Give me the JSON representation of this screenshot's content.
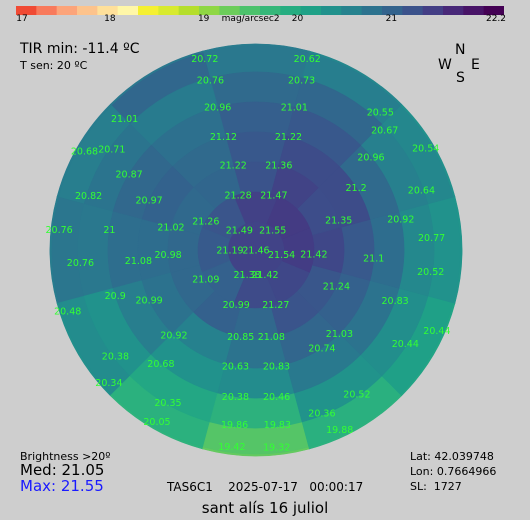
{
  "colorbar": {
    "stops": [
      "#f04a34",
      "#f87a5c",
      "#fca47a",
      "#fdc38c",
      "#ffe09a",
      "#fff7a8",
      "#f5f032",
      "#d8ea2e",
      "#b5de2b",
      "#8fd744",
      "#6ccd5a",
      "#4cc26c",
      "#35b779",
      "#26ad81",
      "#1fa187",
      "#21918c",
      "#26828e",
      "#2c728e",
      "#33638d",
      "#3b528b",
      "#433e85",
      "#482878",
      "#481467",
      "#440154"
    ],
    "tick_labels": [
      "17",
      "18",
      "19",
      "20",
      "21",
      "22.2"
    ],
    "tick_values": [
      17,
      18,
      19,
      20,
      21,
      22.2
    ],
    "unit": "mag/arcsec2",
    "min": 17,
    "max": 22.2
  },
  "header": {
    "tir": "TIR min: -11.4 ºC",
    "tsen": "T sen: 20 ºC"
  },
  "compass": {
    "n": "N",
    "s": "S",
    "e": "E",
    "w": "W"
  },
  "stats": {
    "brightness": "Brightness >20º",
    "med": "Med: 21.05",
    "max": "Max: 21.55"
  },
  "instrument": "TAS6C1    2025-07-17   00:00:17",
  "location": {
    "lat": "Lat: 42.039748",
    "lon": "Lon: 0.7664966",
    "sl": "SL:  1727"
  },
  "caption": "sant alís 16 juliol",
  "label_color": "#33ff33",
  "chart_data": {
    "type": "polar-heatmap",
    "unit": "mag/arcsec2",
    "altitude_rings": [
      {
        "alt": 90,
        "mode": "center",
        "values": [
          21.46
        ]
      },
      {
        "alt": 80,
        "mode": "n",
        "azimuths": [
          0,
          45,
          90,
          135,
          180,
          225,
          270,
          315
        ],
        "values": [
          21.49,
          21.26,
          21.19,
          21.09,
          21.38,
          21.42,
          21.54,
          21.55
        ]
      },
      {
        "alt": 70,
        "mode": "n",
        "azimuths": [
          0,
          30,
          60,
          90,
          120,
          150,
          180,
          210,
          240,
          270,
          300,
          330
        ],
        "values": [
          21.28,
          21.02,
          20.98,
          20.99,
          20.99,
          21.09,
          20.99,
          21.27,
          21.24,
          21.42,
          21.35,
          21.47
        ]
      },
      {
        "alt": 60,
        "mode": "n",
        "azimuths": [
          0,
          30,
          60,
          90,
          120,
          150,
          180,
          210,
          240,
          270,
          300,
          330
        ],
        "values": [
          21.22,
          20.97,
          21.08,
          20.92,
          20.85,
          20.63,
          20.83,
          21.03,
          21.1,
          21.2,
          21.36,
          21.36
        ]
      },
      {
        "alt": 50,
        "mode": "n",
        "azimuths": [
          0,
          30,
          60,
          90,
          120,
          150,
          180,
          210,
          240,
          270,
          300,
          330
        ],
        "values": [
          21.12,
          20.87,
          21,
          20.9,
          20.68,
          20.38,
          20.46,
          20.74,
          20.83,
          20.92,
          20.96,
          21.22
        ]
      },
      {
        "alt": 40,
        "mode": "n",
        "azimuths": [
          0,
          30,
          60,
          90,
          120,
          150,
          180,
          210,
          240,
          270,
          300,
          330
        ],
        "values": [
          20.96,
          20.71,
          20.82,
          20.76,
          20.38,
          20.05,
          19.84,
          20.36,
          20.44,
          20.52,
          20.64,
          21.01
        ]
      },
      {
        "alt": 30,
        "mode": "n",
        "azimuths": [
          0,
          30,
          60,
          90,
          120,
          150,
          180,
          210,
          240,
          270,
          300,
          330
        ],
        "values": [
          20.76,
          21.01,
          20.68,
          20.79,
          20.46,
          19.86,
          19.42,
          19.88,
          20.18,
          20.38,
          20.54,
          20.67
        ]
      },
      {
        "alt": 20,
        "mode": "n",
        "azimuths": [
          0,
          30,
          60,
          90,
          120,
          150,
          180,
          210,
          240,
          270,
          300,
          330
        ],
        "values": [
          20.72,
          20.76,
          20.7,
          20.7,
          20.42,
          19.8,
          19.32,
          19.85,
          20.1,
          20.34,
          20.4,
          20.55
        ]
      }
    ],
    "labels": [
      {
        "text": "20.62",
        "alt": 20,
        "az": 345
      },
      {
        "text": "20.72",
        "alt": 20,
        "az": 15
      },
      {
        "text": "21.01",
        "alt": 25,
        "az": 45
      },
      {
        "text": "20.55",
        "alt": 25,
        "az": 318
      },
      {
        "text": "20.73",
        "alt": 30,
        "az": 345
      },
      {
        "text": "20.76",
        "alt": 30,
        "az": 15
      },
      {
        "text": "20.71",
        "alt": 30,
        "az": 55
      },
      {
        "text": "20.68",
        "alt": 20,
        "az": 60
      },
      {
        "text": "20.67",
        "alt": 30,
        "az": 313
      },
      {
        "text": "20.54",
        "alt": 20,
        "az": 301
      },
      {
        "text": "21.01",
        "alt": 40,
        "az": 345
      },
      {
        "text": "20.96",
        "alt": 40,
        "az": 15
      },
      {
        "text": "20.87",
        "alt": 40,
        "az": 59
      },
      {
        "text": "20.82",
        "alt": 30,
        "az": 72
      },
      {
        "text": "20.96",
        "alt": 40,
        "az": 309
      },
      {
        "text": "20.64",
        "alt": 30,
        "az": 290
      },
      {
        "text": "21.22",
        "alt": 50,
        "az": 344
      },
      {
        "text": "21.12",
        "alt": 50,
        "az": 16
      },
      {
        "text": "21.36",
        "alt": 60,
        "az": 345
      },
      {
        "text": "21.22",
        "alt": 60,
        "az": 15
      },
      {
        "text": "20.97",
        "alt": 50,
        "az": 65
      },
      {
        "text": "21.2",
        "alt": 50,
        "az": 302
      },
      {
        "text": "21.47",
        "alt": 70,
        "az": 342
      },
      {
        "text": "21.28",
        "alt": 70,
        "az": 18
      },
      {
        "text": "20.77",
        "alt": 30,
        "az": 274
      },
      {
        "text": "20.92",
        "alt": 40,
        "az": 282
      },
      {
        "text": "21.35",
        "alt": 60,
        "az": 290
      },
      {
        "text": "21.55",
        "alt": 80,
        "az": 320
      },
      {
        "text": "21.49",
        "alt": 80,
        "az": 40
      },
      {
        "text": "21.26",
        "alt": 70,
        "az": 60
      },
      {
        "text": "21.02",
        "alt": 60,
        "az": 75
      },
      {
        "text": "21",
        "alt": 40,
        "az": 82
      },
      {
        "text": "20.76",
        "alt": 20,
        "az": 84
      },
      {
        "text": "20.52",
        "alt": 30,
        "az": 263
      },
      {
        "text": "21.1",
        "alt": 50,
        "az": 266
      },
      {
        "text": "21.42",
        "alt": 70,
        "az": 266
      },
      {
        "text": "21.54",
        "alt": 80,
        "az": 260
      },
      {
        "text": "21.46",
        "alt": 90,
        "az": 0
      },
      {
        "text": "21.19",
        "alt": 80,
        "az": 90
      },
      {
        "text": "20.98",
        "alt": 60,
        "az": 93
      },
      {
        "text": "21.08",
        "alt": 50,
        "az": 95
      },
      {
        "text": "20.76",
        "alt": 30,
        "az": 94
      },
      {
        "text": "20.44",
        "alt": 20,
        "az": 246
      },
      {
        "text": "20.83",
        "alt": 40,
        "az": 250
      },
      {
        "text": "21.24",
        "alt": 60,
        "az": 246
      },
      {
        "text": "21.42",
        "alt": 80,
        "az": 200
      },
      {
        "text": "21.38",
        "alt": 80,
        "az": 160
      },
      {
        "text": "21.09",
        "alt": 70,
        "az": 120
      },
      {
        "text": "20.99",
        "alt": 50,
        "az": 115
      },
      {
        "text": "20.9",
        "alt": 40,
        "az": 108
      },
      {
        "text": "20.48",
        "alt": 20,
        "az": 108
      },
      {
        "text": "20.44",
        "alt": 30,
        "az": 238
      },
      {
        "text": "21.03",
        "alt": 50,
        "az": 225
      },
      {
        "text": "21.27",
        "alt": 70,
        "az": 200
      },
      {
        "text": "20.99",
        "alt": 70,
        "az": 160
      },
      {
        "text": "20.92",
        "alt": 50,
        "az": 136
      },
      {
        "text": "20.38",
        "alt": 30,
        "az": 127
      },
      {
        "text": "20.74",
        "alt": 50,
        "az": 214
      },
      {
        "text": "21.08",
        "alt": 60,
        "az": 190
      },
      {
        "text": "20.85",
        "alt": 60,
        "az": 170
      },
      {
        "text": "20.68",
        "alt": 40,
        "az": 140
      },
      {
        "text": "20.34",
        "alt": 20,
        "az": 132
      },
      {
        "text": "20.52",
        "alt": 30,
        "az": 215
      },
      {
        "text": "20.83",
        "alt": 50,
        "az": 190
      },
      {
        "text": "20.63",
        "alt": 50,
        "az": 170
      },
      {
        "text": "20.35",
        "alt": 30,
        "az": 150
      },
      {
        "text": "20.36",
        "alt": 30,
        "az": 202
      },
      {
        "text": "20.46",
        "alt": 40,
        "az": 188
      },
      {
        "text": "20.38",
        "alt": 40,
        "az": 172
      },
      {
        "text": "20.05",
        "alt": 20,
        "az": 150
      },
      {
        "text": "19.88",
        "alt": 20,
        "az": 205
      },
      {
        "text": "19.83",
        "alt": 30,
        "az": 187
      },
      {
        "text": "19.86",
        "alt": 30,
        "az": 173
      },
      {
        "text": "19.32",
        "alt": 20,
        "az": 186
      },
      {
        "text": "19.42",
        "alt": 20,
        "az": 173
      }
    ]
  }
}
